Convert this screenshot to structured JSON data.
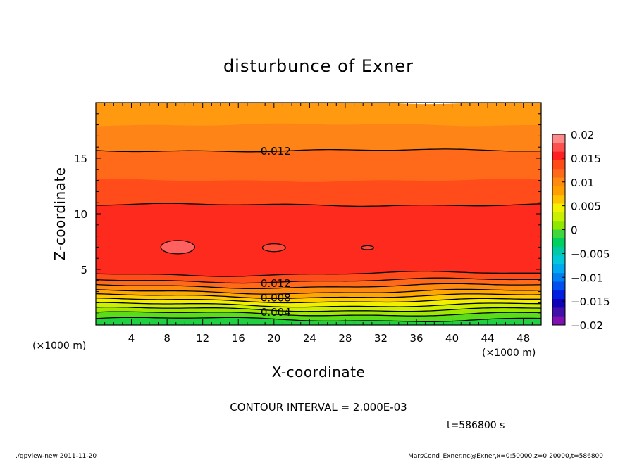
{
  "chart_data": {
    "type": "contour",
    "title": "disturbunce of Exner",
    "xlabel": "X-coordinate",
    "ylabel": "Z-coordinate",
    "x_unit_label": "(×1000 m)",
    "y_unit_label": "(×1000 m)",
    "xlim": [
      0,
      50
    ],
    "ylim": [
      0,
      20
    ],
    "x_ticks": [
      4,
      8,
      12,
      16,
      20,
      24,
      28,
      32,
      36,
      40,
      44,
      48
    ],
    "y_ticks": [
      5,
      10,
      15
    ],
    "contour_interval_text": "CONTOUR INTERVAL = 2.000E-03",
    "time_text": "t=586800 s",
    "contour_labels": [
      {
        "text": "0.012",
        "x": 18.5,
        "z": 15.7
      },
      {
        "text": "0.012",
        "x": 18.5,
        "z": 3.8
      },
      {
        "text": "0.008",
        "x": 18.5,
        "z": 2.5
      },
      {
        "text": "0.004",
        "x": 18.5,
        "z": 1.2
      }
    ],
    "colorbar": {
      "ticks": [
        "0.02",
        "0.015",
        "0.01",
        "0.005",
        "0",
        "−0.005",
        "−0.01",
        "−0.015",
        "−0.02"
      ],
      "range": [
        -0.02,
        0.02
      ],
      "colors": [
        "#ff8a8a",
        "#ff5050",
        "#ff2020",
        "#ff4a1a",
        "#ff6a1a",
        "#ff8a10",
        "#ffa000",
        "#ffc400",
        "#f2f200",
        "#c8f000",
        "#90e800",
        "#3ed83e",
        "#00d060",
        "#00c8a8",
        "#00c8d8",
        "#00a8f0",
        "#0080f0",
        "#0050f0",
        "#0020e0",
        "#1000b8",
        "#4010a8",
        "#8010b0"
      ]
    },
    "field_bands_from_top": [
      {
        "z_top": 20.0,
        "z_bottom": 18.0,
        "color": "#ff9a10"
      },
      {
        "z_top": 18.0,
        "z_bottom": 15.7,
        "color": "#ff8418"
      },
      {
        "z_top": 15.7,
        "z_bottom": 13.0,
        "color": "#ff6a1a"
      },
      {
        "z_top": 13.0,
        "z_bottom": 10.8,
        "color": "#ff4c1a"
      },
      {
        "z_top": 10.8,
        "z_bottom": 4.6,
        "color": "#ff2a1e"
      },
      {
        "z_top": 4.6,
        "z_bottom": 4.0,
        "color": "#ff4c1a"
      },
      {
        "z_top": 4.0,
        "z_bottom": 3.5,
        "color": "#ff6a1a"
      },
      {
        "z_top": 3.5,
        "z_bottom": 3.0,
        "color": "#ff8a10"
      },
      {
        "z_top": 3.0,
        "z_bottom": 2.6,
        "color": "#ffa600"
      },
      {
        "z_top": 2.6,
        "z_bottom": 2.2,
        "color": "#ffcc00"
      },
      {
        "z_top": 2.2,
        "z_bottom": 1.8,
        "color": "#f2f000"
      },
      {
        "z_top": 1.8,
        "z_bottom": 1.4,
        "color": "#cdf000"
      },
      {
        "z_top": 1.4,
        "z_bottom": 1.0,
        "color": "#a0e800"
      },
      {
        "z_top": 1.0,
        "z_bottom": 0.5,
        "color": "#5adc1a"
      },
      {
        "z_top": 0.5,
        "z_bottom": 0.0,
        "color": "#20d040"
      }
    ],
    "contour_lines_z": [
      15.7,
      10.8,
      4.6,
      4.0,
      3.5,
      3.0,
      2.6,
      2.2,
      1.8,
      1.4,
      1.0,
      0.5
    ],
    "highs": [
      {
        "x": 9.2,
        "z": 7.0,
        "rx": 1.9,
        "rz": 0.6,
        "color": "#ff6060"
      },
      {
        "x": 20.0,
        "z": 6.95,
        "rx": 1.3,
        "rz": 0.35,
        "color": "#ff4a3a"
      },
      {
        "x": 30.5,
        "z": 6.95,
        "rx": 0.7,
        "rz": 0.18,
        "color": "#ff4a3a"
      }
    ]
  },
  "footer": {
    "left": "./gpview-new   2011-11-20",
    "right": "MarsCond_Exner.nc@Exner,x=0:50000,z=0:20000,t=586800"
  }
}
